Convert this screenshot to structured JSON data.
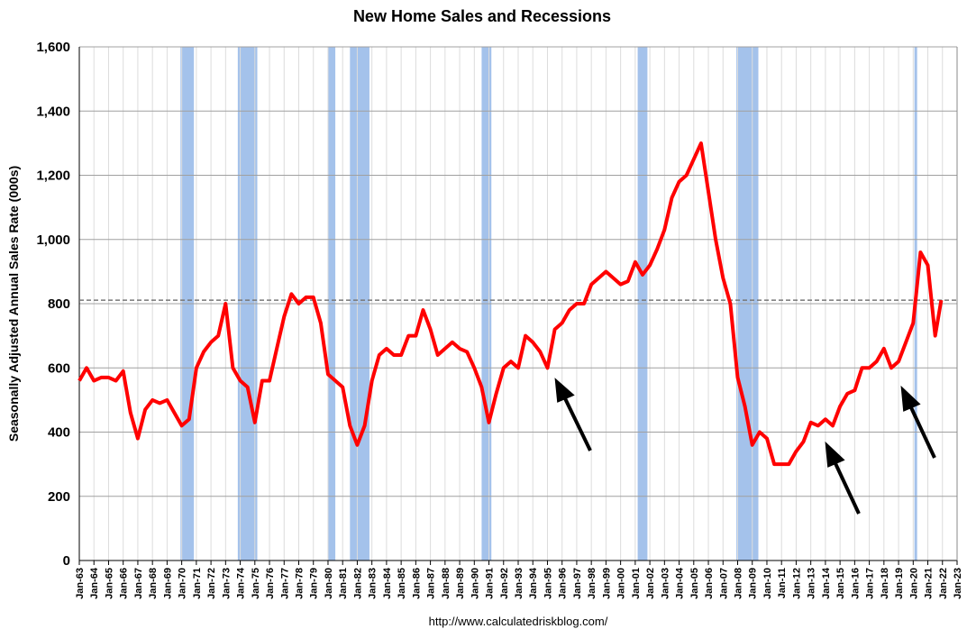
{
  "chart_data": {
    "type": "line",
    "title": "New Home Sales and Recessions",
    "y_label": "Seasonally Adjusted Annual Sales Rate (000s)",
    "source": "http://www.calculatedriskblog.com/",
    "ylim": [
      0,
      1600
    ],
    "yticks": [
      0,
      200,
      400,
      600,
      800,
      {
        "value": 1000,
        "label": "1,000"
      },
      {
        "value": 1200,
        "label": "1,200"
      },
      {
        "value": 1400,
        "label": "1,400"
      },
      {
        "value": 1600,
        "label": "1,600"
      }
    ],
    "xlim": [
      "Jan-63",
      "Jan-23"
    ],
    "xticks": [
      "Jan-63",
      "Jan-64",
      "Jan-65",
      "Jan-66",
      "Jan-67",
      "Jan-68",
      "Jan-69",
      "Jan-70",
      "Jan-71",
      "Jan-72",
      "Jan-73",
      "Jan-74",
      "Jan-75",
      "Jan-76",
      "Jan-77",
      "Jan-78",
      "Jan-79",
      "Jan-80",
      "Jan-81",
      "Jan-82",
      "Jan-83",
      "Jan-84",
      "Jan-85",
      "Jan-86",
      "Jan-87",
      "Jan-88",
      "Jan-89",
      "Jan-90",
      "Jan-91",
      "Jan-92",
      "Jan-93",
      "Jan-94",
      "Jan-95",
      "Jan-96",
      "Jan-97",
      "Jan-98",
      "Jan-99",
      "Jan-00",
      "Jan-01",
      "Jan-02",
      "Jan-03",
      "Jan-04",
      "Jan-05",
      "Jan-06",
      "Jan-07",
      "Jan-08",
      "Jan-09",
      "Jan-10",
      "Jan-11",
      "Jan-12",
      "Jan-13",
      "Jan-14",
      "Jan-15",
      "Jan-16",
      "Jan-17",
      "Jan-18",
      "Jan-19",
      "Jan-20",
      "Jan-21",
      "Jan-22",
      "Jan-23"
    ],
    "grid": true,
    "recession_color": "#a4c2eb",
    "recessions": [
      [
        "Dec-69",
        "Nov-70"
      ],
      [
        "Nov-73",
        "Mar-75"
      ],
      [
        "Jan-80",
        "Jul-80"
      ],
      [
        "Jul-81",
        "Nov-82"
      ],
      [
        "Jul-90",
        "Mar-91"
      ],
      [
        "Mar-01",
        "Nov-01"
      ],
      [
        "Dec-07",
        "Jun-09"
      ],
      [
        "Feb-20",
        "Apr-20"
      ]
    ],
    "reference_line": 811,
    "series": [
      {
        "color": "#ff0000",
        "x": [
          "Jan-63",
          "Jul-63",
          "Jan-64",
          "Jul-64",
          "Jan-65",
          "Jul-65",
          "Jan-66",
          "Jul-66",
          "Jan-67",
          "Jul-67",
          "Jan-68",
          "Jul-68",
          "Jan-69",
          "Jul-69",
          "Jan-70",
          "Jul-70",
          "Jan-71",
          "Jul-71",
          "Jan-72",
          "Jul-72",
          "Jan-73",
          "Jul-73",
          "Jan-74",
          "Jul-74",
          "Jan-75",
          "Jul-75",
          "Jan-76",
          "Jul-76",
          "Jan-77",
          "Jul-77",
          "Jan-78",
          "Jul-78",
          "Jan-79",
          "Jul-79",
          "Jan-80",
          "Jul-80",
          "Jan-81",
          "Jul-81",
          "Jan-82",
          "Jul-82",
          "Jan-83",
          "Jul-83",
          "Jan-84",
          "Jul-84",
          "Jan-85",
          "Jul-85",
          "Jan-86",
          "Jul-86",
          "Jan-87",
          "Jul-87",
          "Jan-88",
          "Jul-88",
          "Jan-89",
          "Jul-89",
          "Jan-90",
          "Jul-90",
          "Jan-91",
          "Jul-91",
          "Jan-92",
          "Jul-92",
          "Jan-93",
          "Jul-93",
          "Jan-94",
          "Jul-94",
          "Jan-95",
          "Jul-95",
          "Jan-96",
          "Jul-96",
          "Jan-97",
          "Jul-97",
          "Jan-98",
          "Jul-98",
          "Jan-99",
          "Jul-99",
          "Jan-00",
          "Jul-00",
          "Jan-01",
          "Jul-01",
          "Jan-02",
          "Jul-02",
          "Jan-03",
          "Jul-03",
          "Jan-04",
          "Jul-04",
          "Jan-05",
          "Jul-05",
          "Jan-06",
          "Jul-06",
          "Jan-07",
          "Jul-07",
          "Jan-08",
          "Jul-08",
          "Jan-09",
          "Jul-09",
          "Jan-10",
          "Jul-10",
          "Jan-11",
          "Jul-11",
          "Jan-12",
          "Jul-12",
          "Jan-13",
          "Jul-13",
          "Jan-14",
          "Jul-14",
          "Jan-15",
          "Jul-15",
          "Jan-16",
          "Jul-16",
          "Jan-17",
          "Jul-17",
          "Jan-18",
          "Jul-18",
          "Jan-19",
          "Jul-19",
          "Jan-20",
          "Jul-20",
          "Jan-21",
          "Jul-21",
          "Dec-21"
        ],
        "values": [
          560,
          600,
          560,
          570,
          570,
          560,
          590,
          460,
          380,
          470,
          500,
          490,
          500,
          460,
          420,
          440,
          600,
          650,
          680,
          700,
          800,
          600,
          560,
          540,
          430,
          560,
          560,
          660,
          760,
          830,
          800,
          820,
          820,
          740,
          580,
          560,
          540,
          420,
          360,
          420,
          560,
          640,
          660,
          640,
          640,
          700,
          700,
          780,
          720,
          640,
          660,
          680,
          660,
          650,
          600,
          540,
          430,
          520,
          600,
          620,
          600,
          700,
          680,
          650,
          600,
          720,
          740,
          780,
          800,
          800,
          860,
          880,
          900,
          880,
          860,
          870,
          930,
          890,
          920,
          970,
          1030,
          1130,
          1180,
          1200,
          1250,
          1300,
          1150,
          1000,
          880,
          800,
          570,
          480,
          360,
          400,
          380,
          300,
          300,
          300,
          340,
          370,
          430,
          420,
          440,
          420,
          480,
          520,
          530,
          600,
          600,
          620,
          660,
          600,
          620,
          680,
          740,
          960,
          920,
          700,
          811
        ]
      }
    ]
  }
}
